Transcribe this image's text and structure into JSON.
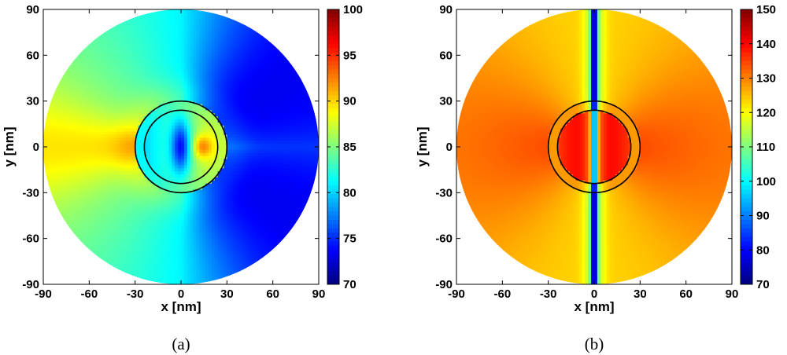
{
  "chart_data": [
    {
      "type": "heatmap",
      "panel_label": "(a)",
      "xlabel": "x [nm]",
      "ylabel": "y [nm]",
      "xlim": [
        -90,
        90
      ],
      "ylim": [
        -90,
        90
      ],
      "xticks": [
        -90,
        -60,
        -30,
        0,
        30,
        60,
        90
      ],
      "yticks": [
        -90,
        -60,
        -30,
        0,
        30,
        60,
        90
      ],
      "colorbar": {
        "min": 70,
        "max": 100,
        "ticks": [
          70,
          75,
          80,
          85,
          90,
          95,
          100
        ]
      },
      "domain_radius": 90,
      "shell_circles_radius": [
        24,
        30
      ],
      "field_samples": {
        "left_edge": 86,
        "right_edge": 77,
        "top_right": 71,
        "bottom_right": 71,
        "top_left": 80,
        "bottom_left": 80,
        "core_center": 74,
        "core_right": 91
      }
    },
    {
      "type": "heatmap",
      "panel_label": "(b)",
      "xlabel": "x [nm]",
      "ylabel": "y [nm]",
      "xlim": [
        -90,
        90
      ],
      "ylim": [
        -90,
        90
      ],
      "xticks": [
        -90,
        -60,
        -30,
        0,
        30,
        60,
        90
      ],
      "yticks": [
        -90,
        -60,
        -30,
        0,
        30,
        60,
        90
      ],
      "colorbar": {
        "min": 70,
        "max": 150,
        "ticks": [
          70,
          80,
          90,
          100,
          110,
          120,
          130,
          140,
          150
        ]
      },
      "domain_radius": 90,
      "shell_circles_radius": [
        24,
        30
      ],
      "field_samples": {
        "background": 131,
        "core": 142,
        "vertical_axis_line": 78,
        "far_top_bottom": 124
      }
    }
  ]
}
